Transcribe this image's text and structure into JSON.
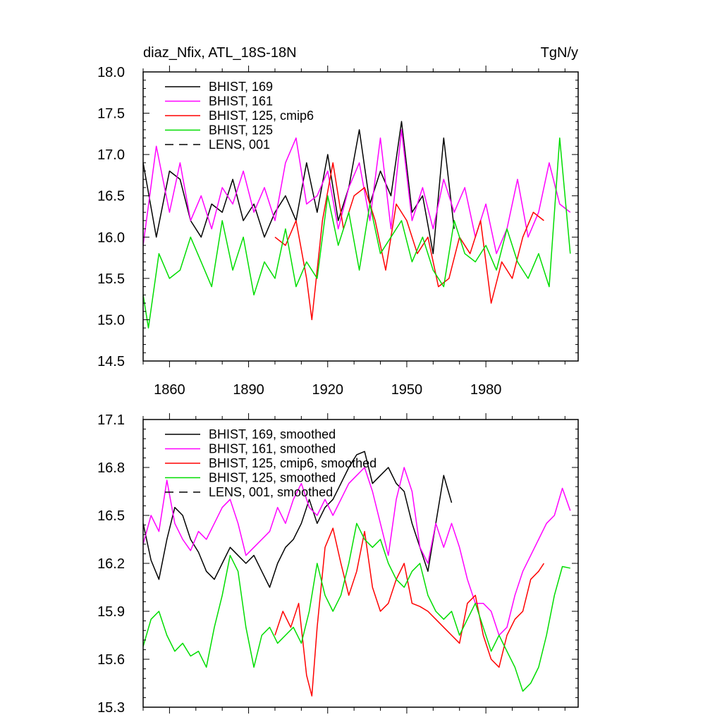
{
  "chart_data": [
    {
      "type": "line",
      "title": "diaz_Nfix, ATL_18S-18N",
      "units": "TgN/y",
      "xlim": [
        1850,
        2015
      ],
      "ylim": [
        14.5,
        18.0
      ],
      "xticks": [
        1860,
        1890,
        1920,
        1950,
        1980
      ],
      "yticks": [
        "14.5",
        "15.0",
        "15.5",
        "16.0",
        "16.5",
        "17.0",
        "17.5",
        "18.0"
      ],
      "legend_position": "top-left",
      "series": [
        {
          "name": "BHIST, 169",
          "color": "#000000",
          "dash": "solid",
          "x": [
            1850,
            1855,
            1860,
            1864,
            1868,
            1872,
            1876,
            1880,
            1884,
            1888,
            1892,
            1896,
            1900,
            1904,
            1908,
            1912,
            1916,
            1920,
            1924,
            1928,
            1932,
            1936,
            1940,
            1944,
            1948,
            1952,
            1956,
            1960,
            1964,
            1968
          ],
          "y": [
            16.9,
            16.0,
            16.8,
            16.7,
            16.2,
            16.0,
            16.4,
            16.3,
            16.7,
            16.2,
            16.4,
            16.0,
            16.3,
            16.5,
            16.2,
            16.9,
            16.3,
            17.0,
            16.2,
            16.6,
            17.3,
            16.4,
            16.8,
            16.5,
            17.4,
            16.3,
            16.5,
            15.8,
            17.2,
            16.1
          ]
        },
        {
          "name": "BHIST, 161",
          "color": "#ff00ff",
          "dash": "solid",
          "x": [
            1850,
            1855,
            1860,
            1864,
            1868,
            1872,
            1876,
            1880,
            1884,
            1888,
            1892,
            1896,
            1900,
            1904,
            1908,
            1912,
            1916,
            1920,
            1924,
            1928,
            1932,
            1936,
            1940,
            1944,
            1948,
            1952,
            1956,
            1960,
            1964,
            1968,
            1972,
            1976,
            1980,
            1984,
            1988,
            1992,
            1996,
            2000,
            2004,
            2008,
            2012
          ],
          "y": [
            15.9,
            17.1,
            16.3,
            16.9,
            16.2,
            16.5,
            16.1,
            16.6,
            16.4,
            16.8,
            16.3,
            16.6,
            16.2,
            16.9,
            17.2,
            16.4,
            16.5,
            16.8,
            16.1,
            16.6,
            16.9,
            16.2,
            17.2,
            16.1,
            17.3,
            16.2,
            16.6,
            16.1,
            16.7,
            16.3,
            16.6,
            16.0,
            16.4,
            15.8,
            16.1,
            16.7,
            16.0,
            16.3,
            16.9,
            16.4,
            16.3
          ]
        },
        {
          "name": "BHIST, 125, cmip6",
          "color": "#ff0000",
          "dash": "solid",
          "x": [
            1900,
            1904,
            1908,
            1912,
            1914,
            1918,
            1922,
            1926,
            1930,
            1934,
            1938,
            1942,
            1946,
            1950,
            1954,
            1958,
            1962,
            1966,
            1970,
            1974,
            1978,
            1982,
            1986,
            1990,
            1994,
            1998,
            2002
          ],
          "y": [
            16.0,
            15.9,
            16.2,
            15.5,
            15.0,
            16.2,
            16.9,
            16.1,
            16.5,
            16.6,
            16.2,
            15.6,
            16.4,
            16.2,
            15.8,
            16.0,
            15.4,
            15.5,
            16.0,
            15.8,
            16.2,
            15.2,
            15.7,
            15.5,
            16.0,
            16.3,
            16.2
          ]
        },
        {
          "name": "BHIST, 125",
          "color": "#00dd00",
          "dash": "solid",
          "x": [
            1850,
            1852,
            1856,
            1860,
            1864,
            1868,
            1872,
            1876,
            1880,
            1884,
            1888,
            1892,
            1896,
            1900,
            1904,
            1908,
            1912,
            1916,
            1920,
            1924,
            1928,
            1932,
            1936,
            1940,
            1944,
            1948,
            1952,
            1956,
            1960,
            1964,
            1968,
            1972,
            1976,
            1980,
            1984,
            1988,
            1992,
            1996,
            2000,
            2004,
            2008,
            2012
          ],
          "y": [
            15.3,
            14.9,
            15.8,
            15.5,
            15.6,
            16.0,
            15.7,
            15.4,
            16.2,
            15.6,
            16.0,
            15.3,
            15.7,
            15.5,
            16.1,
            15.4,
            15.7,
            15.5,
            16.5,
            15.9,
            16.3,
            15.6,
            16.4,
            15.8,
            16.0,
            16.2,
            15.7,
            16.0,
            15.6,
            15.4,
            16.2,
            15.8,
            15.7,
            15.9,
            15.6,
            16.1,
            15.7,
            15.5,
            15.8,
            15.4,
            17.2,
            15.8
          ]
        },
        {
          "name": "LENS, 001",
          "color": "#000000",
          "dash": "dashed",
          "x": [],
          "y": []
        }
      ]
    },
    {
      "type": "line",
      "title": "",
      "units": "",
      "xlim": [
        1850,
        2015
      ],
      "ylim": [
        15.3,
        17.1
      ],
      "xticks": [
        1860,
        1890,
        1920,
        1950,
        1980
      ],
      "yticks": [
        "15.3",
        "15.6",
        "15.9",
        "16.2",
        "16.5",
        "16.8",
        "17.1"
      ],
      "legend_position": "top-left",
      "series": [
        {
          "name": "BHIST, 169, smoothed",
          "color": "#000000",
          "dash": "solid",
          "x": [
            1850,
            1853,
            1856,
            1859,
            1862,
            1865,
            1868,
            1871,
            1874,
            1877,
            1880,
            1883,
            1886,
            1889,
            1892,
            1895,
            1898,
            1901,
            1904,
            1907,
            1910,
            1913,
            1916,
            1919,
            1922,
            1925,
            1928,
            1931,
            1934,
            1937,
            1940,
            1943,
            1946,
            1949,
            1952,
            1955,
            1958,
            1961,
            1964,
            1967
          ],
          "y": [
            16.45,
            16.22,
            16.1,
            16.35,
            16.55,
            16.5,
            16.35,
            16.27,
            16.15,
            16.1,
            16.2,
            16.3,
            16.25,
            16.2,
            16.25,
            16.15,
            16.05,
            16.2,
            16.3,
            16.35,
            16.45,
            16.6,
            16.45,
            16.55,
            16.6,
            16.7,
            16.8,
            16.88,
            16.9,
            16.7,
            16.75,
            16.8,
            16.7,
            16.65,
            16.45,
            16.3,
            16.15,
            16.45,
            16.75,
            16.58
          ]
        },
        {
          "name": "BHIST, 161, smoothed",
          "color": "#ff00ff",
          "dash": "solid",
          "x": [
            1850,
            1853,
            1856,
            1859,
            1862,
            1865,
            1868,
            1871,
            1874,
            1877,
            1880,
            1883,
            1886,
            1889,
            1892,
            1895,
            1898,
            1901,
            1904,
            1907,
            1910,
            1913,
            1916,
            1919,
            1922,
            1925,
            1928,
            1931,
            1934,
            1937,
            1940,
            1943,
            1946,
            1949,
            1952,
            1955,
            1958,
            1961,
            1964,
            1967,
            1970,
            1973,
            1976,
            1979,
            1982,
            1985,
            1988,
            1991,
            1994,
            1997,
            2000,
            2003,
            2006,
            2009,
            2012
          ],
          "y": [
            16.32,
            16.5,
            16.4,
            16.72,
            16.45,
            16.35,
            16.28,
            16.4,
            16.35,
            16.45,
            16.55,
            16.6,
            16.45,
            16.25,
            16.3,
            16.35,
            16.4,
            16.55,
            16.45,
            16.6,
            16.7,
            16.55,
            16.5,
            16.6,
            16.5,
            16.6,
            16.7,
            16.75,
            16.8,
            16.65,
            16.45,
            16.25,
            16.6,
            16.8,
            16.65,
            16.3,
            16.2,
            16.45,
            16.3,
            16.45,
            16.3,
            16.1,
            15.95,
            15.95,
            15.9,
            15.75,
            15.8,
            16.0,
            16.15,
            16.25,
            16.35,
            16.45,
            16.5,
            16.67,
            16.53
          ]
        },
        {
          "name": "BHIST, 125, cmip6, smoothed",
          "color": "#ff0000",
          "dash": "solid",
          "x": [
            1900,
            1903,
            1906,
            1909,
            1912,
            1914,
            1916,
            1919,
            1922,
            1925,
            1928,
            1931,
            1934,
            1937,
            1940,
            1943,
            1946,
            1949,
            1952,
            1955,
            1958,
            1961,
            1964,
            1967,
            1970,
            1973,
            1976,
            1979,
            1982,
            1985,
            1988,
            1991,
            1994,
            1997,
            2000,
            2002
          ],
          "y": [
            15.75,
            15.9,
            15.8,
            15.95,
            15.5,
            15.37,
            15.8,
            16.3,
            16.42,
            16.2,
            16.0,
            16.15,
            16.4,
            16.05,
            15.9,
            15.95,
            16.1,
            16.2,
            15.95,
            15.93,
            15.9,
            15.85,
            15.8,
            15.75,
            15.7,
            15.95,
            16.0,
            15.75,
            15.6,
            15.55,
            15.75,
            15.85,
            15.9,
            16.1,
            16.15,
            16.2
          ]
        },
        {
          "name": "BHIST, 125, smoothed",
          "color": "#00dd00",
          "dash": "solid",
          "x": [
            1850,
            1853,
            1856,
            1859,
            1862,
            1865,
            1868,
            1871,
            1874,
            1877,
            1880,
            1883,
            1886,
            1889,
            1892,
            1895,
            1898,
            1901,
            1904,
            1907,
            1910,
            1913,
            1916,
            1919,
            1922,
            1925,
            1928,
            1931,
            1934,
            1937,
            1940,
            1943,
            1946,
            1949,
            1952,
            1955,
            1958,
            1961,
            1964,
            1967,
            1970,
            1973,
            1976,
            1979,
            1982,
            1985,
            1988,
            1991,
            1994,
            1997,
            2000,
            2003,
            2006,
            2009,
            2012
          ],
          "y": [
            15.68,
            15.85,
            15.9,
            15.75,
            15.65,
            15.7,
            15.62,
            15.65,
            15.55,
            15.8,
            16.0,
            16.25,
            16.15,
            15.8,
            15.55,
            15.75,
            15.8,
            15.7,
            15.75,
            15.8,
            15.7,
            15.9,
            16.2,
            16.0,
            15.9,
            16.0,
            16.2,
            16.45,
            16.35,
            16.3,
            16.35,
            16.2,
            16.1,
            16.05,
            16.15,
            16.2,
            16.0,
            15.9,
            15.85,
            15.9,
            15.75,
            15.85,
            15.95,
            15.8,
            15.65,
            15.75,
            15.65,
            15.55,
            15.4,
            15.45,
            15.55,
            15.75,
            16.0,
            16.18,
            16.17
          ]
        },
        {
          "name": "LENS, 001, smoothed",
          "color": "#000000",
          "dash": "dashed",
          "x": [],
          "y": []
        }
      ]
    }
  ]
}
